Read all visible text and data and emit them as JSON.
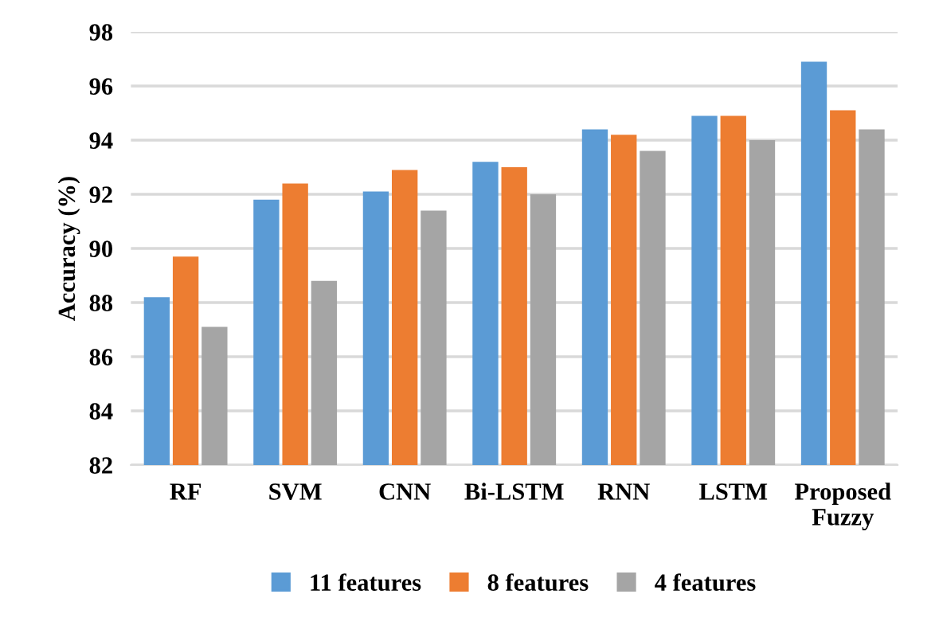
{
  "chart_data": {
    "type": "bar",
    "ylabel": "Accuracy (%)",
    "categories": [
      "RF",
      "SVM",
      "CNN",
      "Bi-LSTM",
      "RNN",
      "LSTM",
      "Proposed\nFuzzy"
    ],
    "series": [
      {
        "name": "11 features",
        "color": "#5b9bd5",
        "values": [
          88.2,
          91.8,
          92.1,
          93.2,
          94.4,
          94.9,
          96.9
        ]
      },
      {
        "name": "8 features",
        "color": "#ed7d31",
        "values": [
          89.7,
          92.4,
          92.9,
          93.0,
          94.2,
          94.9,
          95.1
        ]
      },
      {
        "name": "4 features",
        "color": "#a5a5a5",
        "values": [
          87.1,
          88.8,
          91.4,
          92.0,
          93.6,
          94.0,
          94.4
        ]
      }
    ],
    "ylim": [
      82,
      98
    ],
    "yticks": [
      82,
      84,
      86,
      88,
      90,
      92,
      94,
      96,
      98
    ],
    "grid": "y",
    "legend": "bottom"
  }
}
